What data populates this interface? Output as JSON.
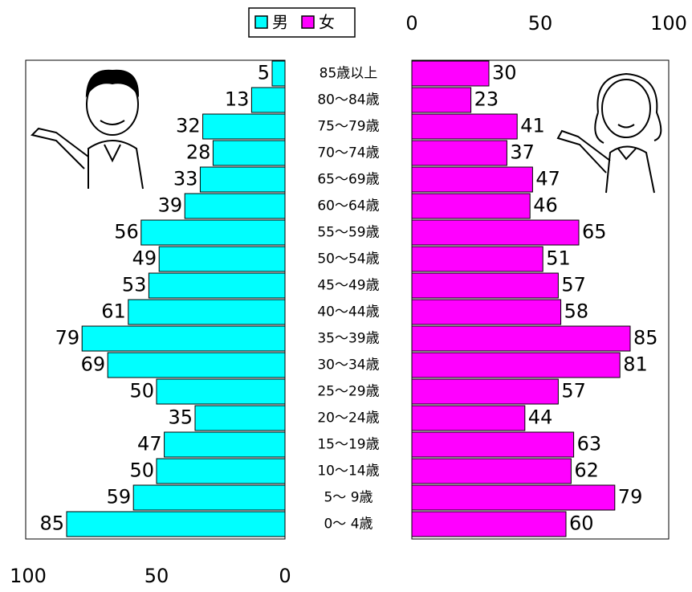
{
  "chart_data": {
    "type": "pyramid",
    "categories": [
      "85歳以上",
      "80～84歳",
      "75～79歳",
      "70～74歳",
      "65～69歳",
      "60～64歳",
      "55～59歳",
      "50～54歳",
      "45～49歳",
      "40～44歳",
      "35～39歳",
      "30～34歳",
      "25～29歳",
      "20～24歳",
      "15～19歳",
      "10～14歳",
      "5～ 9歳",
      "0～ 4歳"
    ],
    "series": [
      {
        "name": "男",
        "color": "#00ffff",
        "values": [
          5,
          13,
          32,
          28,
          33,
          39,
          56,
          49,
          53,
          61,
          79,
          69,
          50,
          35,
          47,
          50,
          59,
          85
        ]
      },
      {
        "name": "女",
        "color": "#ff00ff",
        "values": [
          30,
          23,
          41,
          37,
          47,
          46,
          65,
          51,
          57,
          58,
          85,
          81,
          57,
          44,
          63,
          62,
          79,
          60
        ]
      }
    ],
    "xlim": [
      0,
      100
    ],
    "xticks": [
      0,
      50,
      100
    ]
  }
}
